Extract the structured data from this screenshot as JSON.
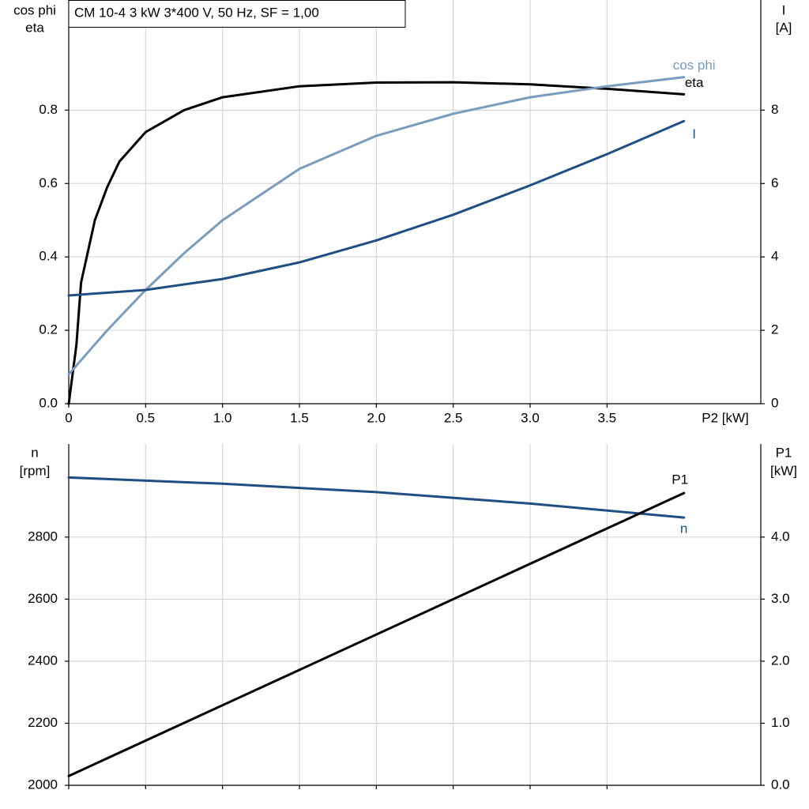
{
  "chart_data": [
    {
      "type": "line",
      "title": "CM 10-4   3 kW   3*400 V, 50 Hz, SF = 1,00",
      "ylabel": [
        "cos phi",
        "eta"
      ],
      "y2label": [
        "I",
        "[A]"
      ],
      "xlabel": "P2 [kW]",
      "xlim": [
        0,
        4.5
      ],
      "xticks": [
        0,
        0.5,
        {
          "value": 1,
          "label": "1.0"
        },
        1.5,
        {
          "value": 2,
          "label": "2.0"
        },
        2.5,
        {
          "value": 3,
          "label": "3.0"
        },
        3.5
      ],
      "ylim": [
        0,
        1.1
      ],
      "yticks": [
        {
          "value": 0,
          "label": "0.0"
        },
        0.2,
        0.4,
        0.6,
        0.8
      ],
      "y2lim": [
        0,
        11
      ],
      "y2ticks": [
        0,
        2,
        4,
        6,
        8
      ],
      "grid": true,
      "x_tick_labels": true,
      "series": [
        {
          "name": "eta",
          "color": "#000000",
          "x": [
            0,
            0.05,
            0.08,
            0.17,
            0.25,
            0.33,
            0.5,
            0.75,
            1,
            1.5,
            2,
            2.5,
            3,
            3.5,
            4
          ],
          "values": [
            0,
            0.16,
            0.33,
            0.5,
            0.59,
            0.66,
            0.74,
            0.8,
            0.835,
            0.865,
            0.875,
            0.876,
            0.87,
            0.858,
            0.843
          ]
        },
        {
          "name": "cos phi",
          "color": "#7a9cbd",
          "x": [
            0,
            0.25,
            0.5,
            0.75,
            1,
            1.5,
            2,
            2.5,
            3,
            3.5,
            4
          ],
          "values": [
            0.08,
            0.2,
            0.31,
            0.41,
            0.5,
            0.64,
            0.73,
            0.79,
            0.835,
            0.865,
            0.89
          ]
        },
        {
          "name": "I",
          "color": "#1f4e82",
          "axis": "y2",
          "x": [
            0,
            0.5,
            1,
            1.5,
            2,
            2.5,
            3,
            3.5,
            4
          ],
          "values": [
            2.95,
            3.1,
            3.4,
            3.85,
            4.45,
            5.15,
            5.95,
            6.8,
            7.7
          ]
        }
      ]
    },
    {
      "type": "line",
      "ylabel": [
        "n",
        "[rpm]"
      ],
      "y2label": [
        "P1",
        "[kW]"
      ],
      "xlim": [
        0,
        4.5
      ],
      "xticks": [
        0,
        0.5,
        1,
        1.5,
        2,
        2.5,
        3,
        3.5
      ],
      "ylim": [
        2000,
        3100
      ],
      "yticks": [
        2000,
        2200,
        2400,
        2600,
        2800
      ],
      "y2lim": [
        0,
        5.5
      ],
      "y2ticks": [
        {
          "value": 0,
          "label": "0.0"
        },
        {
          "value": 1,
          "label": "1.0"
        },
        {
          "value": 2,
          "label": "2.0"
        },
        {
          "value": 3,
          "label": "3.0"
        },
        {
          "value": 4,
          "label": "4.0"
        }
      ],
      "grid": true,
      "x_tick_labels": false,
      "series": [
        {
          "name": "n",
          "color": "#1f4e82",
          "x": [
            0,
            1,
            2,
            3,
            4
          ],
          "values": [
            2992,
            2972,
            2945,
            2908,
            2863
          ]
        },
        {
          "name": "P1",
          "color": "#000000",
          "axis": "y2",
          "x": [
            0,
            4
          ],
          "values": [
            0.15,
            4.71
          ]
        }
      ]
    }
  ]
}
